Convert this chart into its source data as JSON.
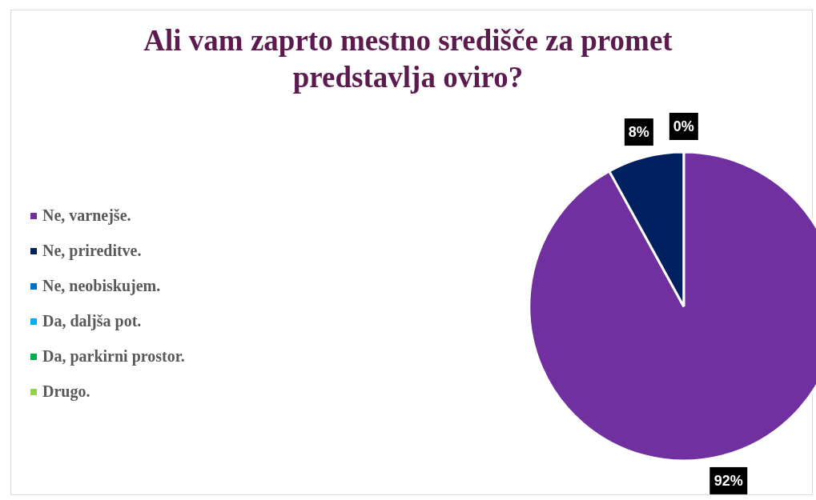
{
  "chart_data": {
    "type": "pie",
    "title": "Ali vam zaprto mestno središče za promet predstavlja oviro?",
    "categories": [
      "Ne, varnejše.",
      "Ne, prireditve.",
      "Ne, neobiskujem.",
      "Da, daljša pot.",
      "Da, parkirni prostor.",
      "Drugo."
    ],
    "values": [
      92,
      8,
      0,
      0,
      0,
      0
    ],
    "colors": [
      "#7030a0",
      "#002060",
      "#0070c0",
      "#00b0f0",
      "#00b050",
      "#92d050"
    ],
    "value_labels": [
      "92%",
      "8%",
      "0%",
      null,
      null,
      null
    ],
    "legend": "left"
  }
}
